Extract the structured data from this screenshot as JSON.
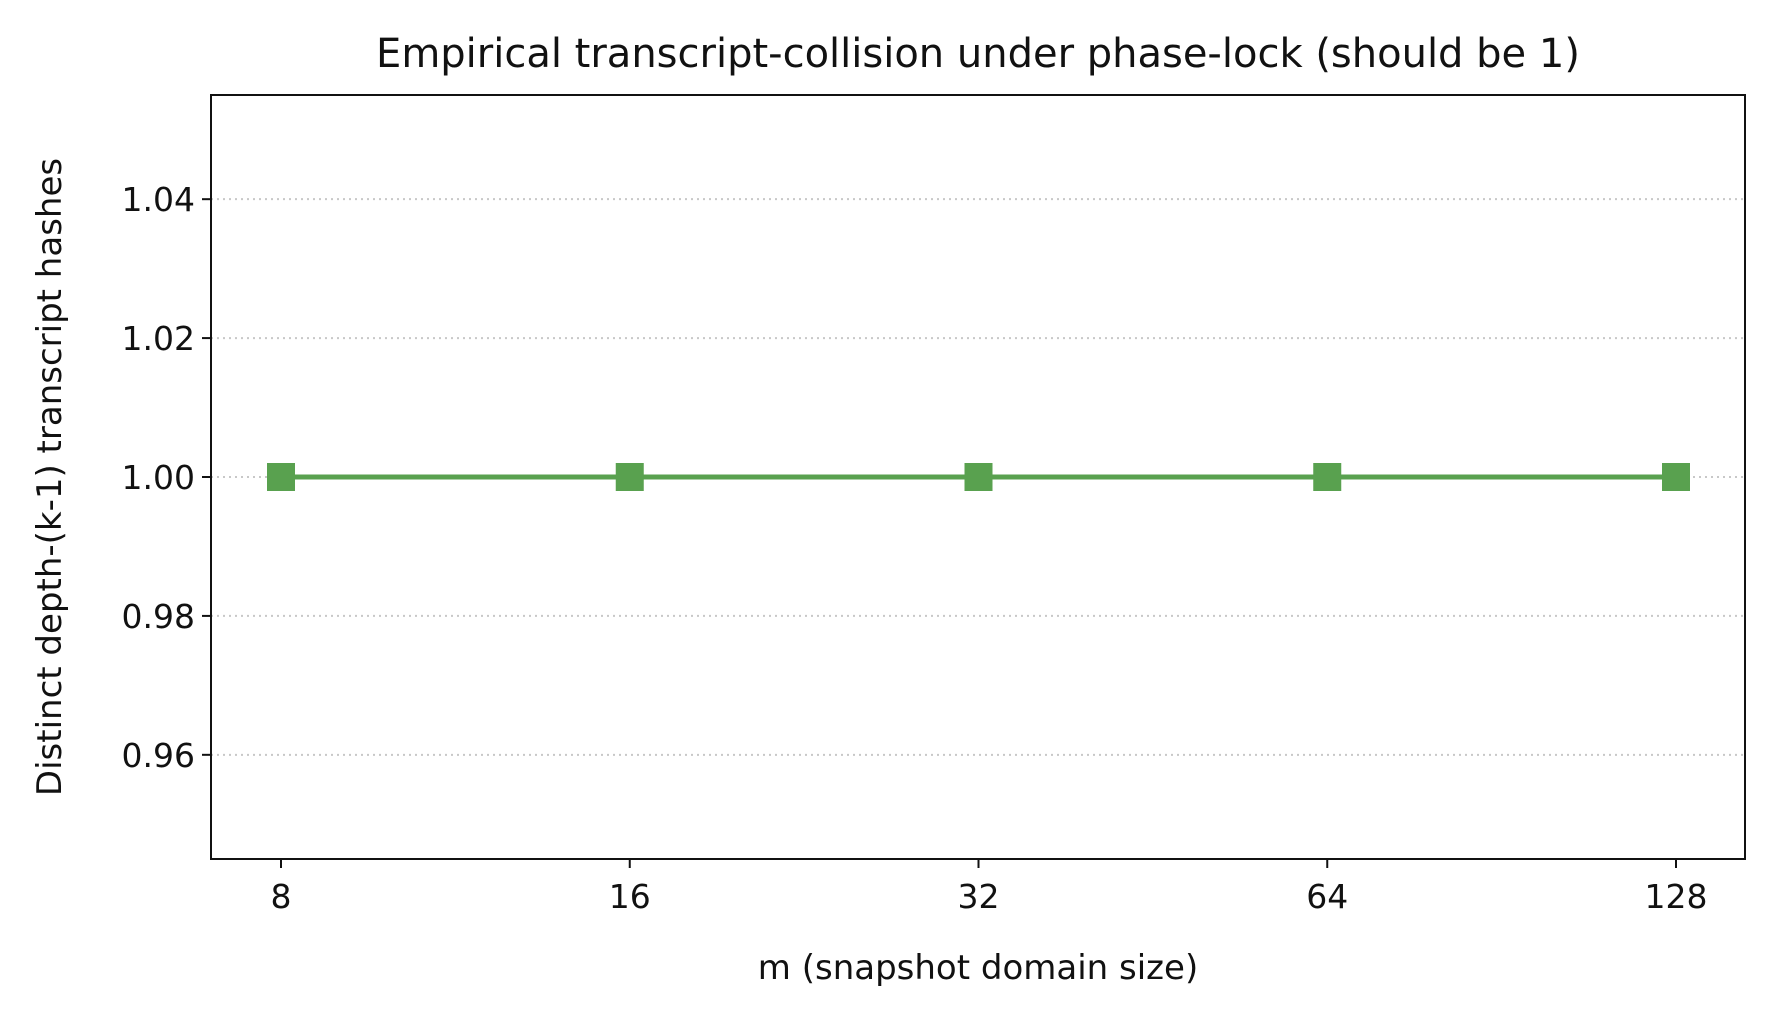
{
  "chart_data": {
    "type": "line",
    "title": "Empirical transcript-collision under phase-lock (should be 1)",
    "xlabel": "m (snapshot domain size)",
    "ylabel": "Distinct depth-(k-1) transcript hashes",
    "x_scale": "log2",
    "x": [
      8,
      16,
      32,
      64,
      128
    ],
    "x_tick_labels": [
      "8",
      "16",
      "32",
      "64",
      "128"
    ],
    "y_ticks": [
      0.96,
      0.98,
      1.0,
      1.02,
      1.04
    ],
    "y_tick_labels": [
      "0.96",
      "0.98",
      "1.00",
      "1.02",
      "1.04"
    ],
    "ylim": [
      0.945,
      1.055
    ],
    "xlim": [
      8,
      128
    ],
    "grid": "y-dotted",
    "series": [
      {
        "values": [
          1.0,
          1.0,
          1.0,
          1.0,
          1.0
        ],
        "color": "#59a14f",
        "marker": "square"
      }
    ]
  }
}
